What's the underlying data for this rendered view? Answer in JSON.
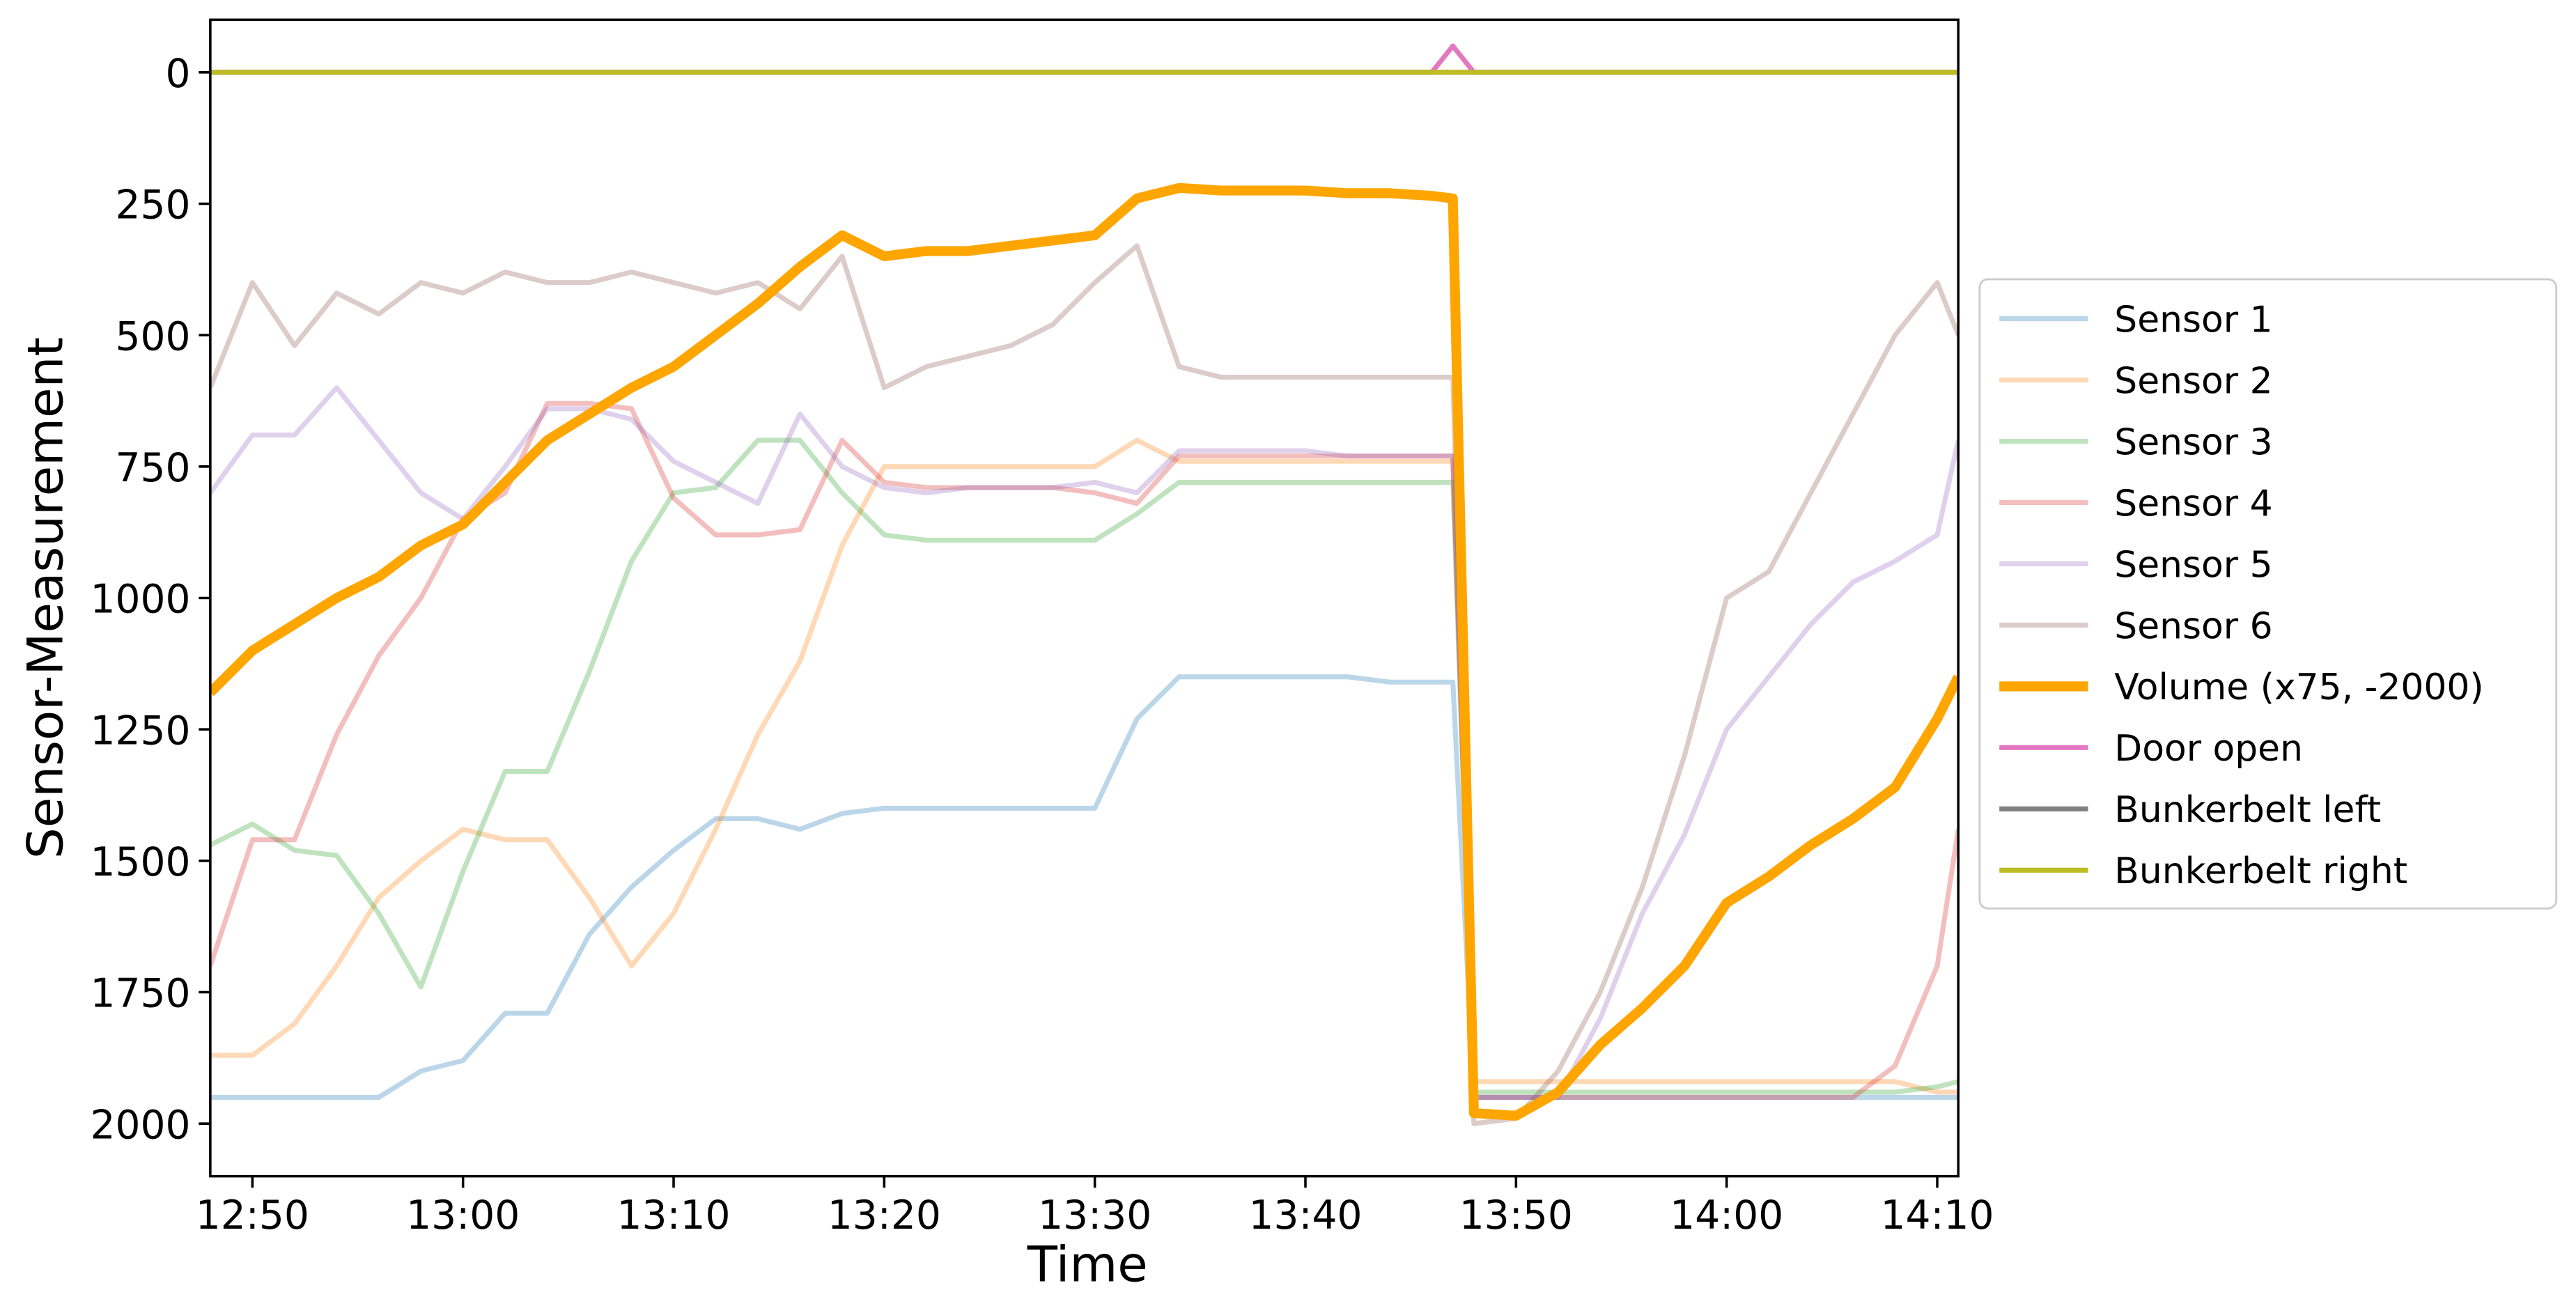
{
  "chart_data": {
    "type": "line",
    "x_label": "Time",
    "y_label": "Sensor-Measurement",
    "x": [
      "12:48",
      "12:50",
      "12:52",
      "12:54",
      "12:56",
      "12:58",
      "13:00",
      "13:02",
      "13:04",
      "13:06",
      "13:08",
      "13:10",
      "13:12",
      "13:14",
      "13:16",
      "13:18",
      "13:20",
      "13:22",
      "13:24",
      "13:26",
      "13:28",
      "13:30",
      "13:32",
      "13:34",
      "13:36",
      "13:38",
      "13:40",
      "13:42",
      "13:44",
      "13:46",
      "13:47",
      "13:48",
      "13:50",
      "13:52",
      "13:54",
      "13:56",
      "13:58",
      "14:00",
      "14:02",
      "14:04",
      "14:06",
      "14:08",
      "14:10",
      "14:11"
    ],
    "xlim": [
      "12:48",
      "14:11"
    ],
    "xticks": [
      "12:50",
      "13:00",
      "13:10",
      "13:20",
      "13:30",
      "13:40",
      "13:50",
      "14:00",
      "14:10"
    ],
    "ylim": [
      -100,
      2100
    ],
    "y_inverted": true,
    "yticks": [
      0,
      250,
      500,
      750,
      1000,
      1250,
      1500,
      1750,
      2000
    ],
    "grid": false,
    "legend": "outside right",
    "series": [
      {
        "name": "Sensor 1",
        "color": "#1f77b4",
        "alpha": 0.3,
        "line_width": 3,
        "values": [
          1950,
          1950,
          1950,
          1950,
          1950,
          1900,
          1880,
          1790,
          1790,
          1640,
          1550,
          1480,
          1420,
          1420,
          1440,
          1410,
          1400,
          1400,
          1400,
          1400,
          1400,
          1400,
          1230,
          1150,
          1150,
          1150,
          1150,
          1150,
          1160,
          1160,
          1160,
          1950,
          1950,
          1950,
          1950,
          1950,
          1950,
          1950,
          1950,
          1950,
          1950,
          1950,
          1950,
          1950
        ]
      },
      {
        "name": "Sensor 2",
        "color": "#ff7f0e",
        "alpha": 0.3,
        "line_width": 3,
        "values": [
          1870,
          1870,
          1810,
          1700,
          1570,
          1500,
          1440,
          1460,
          1460,
          1570,
          1700,
          1600,
          1440,
          1260,
          1120,
          900,
          750,
          750,
          750,
          750,
          750,
          750,
          700,
          740,
          740,
          740,
          740,
          740,
          740,
          740,
          740,
          1920,
          1920,
          1920,
          1920,
          1920,
          1920,
          1920,
          1920,
          1920,
          1920,
          1920,
          1940,
          1940
        ]
      },
      {
        "name": "Sensor 3",
        "color": "#2ca02c",
        "alpha": 0.3,
        "line_width": 3,
        "values": [
          1470,
          1430,
          1480,
          1490,
          1600,
          1740,
          1520,
          1330,
          1330,
          1140,
          930,
          800,
          790,
          700,
          700,
          800,
          880,
          890,
          890,
          890,
          890,
          890,
          840,
          780,
          780,
          780,
          780,
          780,
          780,
          780,
          780,
          1940,
          1940,
          1940,
          1940,
          1940,
          1940,
          1940,
          1940,
          1940,
          1940,
          1940,
          1930,
          1920
        ]
      },
      {
        "name": "Sensor 4",
        "color": "#d62728",
        "alpha": 0.3,
        "line_width": 3,
        "values": [
          1700,
          1460,
          1460,
          1260,
          1110,
          1000,
          850,
          800,
          630,
          630,
          640,
          810,
          880,
          880,
          870,
          700,
          780,
          790,
          790,
          790,
          790,
          800,
          820,
          730,
          730,
          730,
          730,
          730,
          730,
          730,
          730,
          1950,
          1950,
          1950,
          1950,
          1950,
          1950,
          1950,
          1950,
          1950,
          1950,
          1890,
          1700,
          1440
        ]
      },
      {
        "name": "Sensor 5",
        "color": "#9467bd",
        "alpha": 0.3,
        "line_width": 3,
        "values": [
          800,
          690,
          690,
          600,
          700,
          800,
          850,
          750,
          640,
          640,
          660,
          740,
          780,
          820,
          650,
          750,
          790,
          800,
          790,
          790,
          790,
          780,
          800,
          720,
          720,
          720,
          720,
          730,
          730,
          730,
          730,
          1950,
          1950,
          1950,
          1800,
          1600,
          1450,
          1250,
          1150,
          1050,
          970,
          930,
          880,
          700
        ]
      },
      {
        "name": "Sensor 6",
        "color": "#8c564b",
        "alpha": 0.3,
        "line_width": 3,
        "values": [
          600,
          400,
          520,
          420,
          460,
          400,
          420,
          380,
          400,
          400,
          380,
          400,
          420,
          400,
          450,
          350,
          600,
          560,
          540,
          520,
          480,
          400,
          330,
          560,
          580,
          580,
          580,
          580,
          580,
          580,
          580,
          2000,
          1990,
          1900,
          1750,
          1550,
          1300,
          1000,
          950,
          800,
          650,
          500,
          400,
          500
        ]
      },
      {
        "name": "Volume (x75, -2000)",
        "color": "#ffa500",
        "alpha": 1,
        "line_width": 6,
        "values": [
          1180,
          1100,
          1050,
          1000,
          960,
          900,
          860,
          780,
          700,
          650,
          600,
          560,
          500,
          440,
          370,
          310,
          350,
          340,
          340,
          330,
          320,
          310,
          240,
          220,
          225,
          225,
          225,
          230,
          230,
          235,
          240,
          1980,
          1985,
          1940,
          1850,
          1780,
          1700,
          1580,
          1530,
          1470,
          1420,
          1360,
          1230,
          1150
        ]
      },
      {
        "name": "Door open",
        "color": "#e377c2",
        "alpha": 1,
        "line_width": 3,
        "values": [
          0,
          0,
          0,
          0,
          0,
          0,
          0,
          0,
          0,
          0,
          0,
          0,
          0,
          0,
          0,
          0,
          0,
          0,
          0,
          0,
          0,
          0,
          0,
          0,
          0,
          0,
          0,
          0,
          0,
          0,
          -50,
          0,
          0,
          0,
          0,
          0,
          0,
          0,
          0,
          0,
          0,
          0,
          0,
          0
        ]
      },
      {
        "name": "Bunkerbelt left",
        "color": "#7f7f7f",
        "alpha": 1,
        "line_width": 3,
        "values": [
          0,
          0,
          0,
          0,
          0,
          0,
          0,
          0,
          0,
          0,
          0,
          0,
          0,
          0,
          0,
          0,
          0,
          0,
          0,
          0,
          0,
          0,
          0,
          0,
          0,
          0,
          0,
          0,
          0,
          0,
          0,
          0,
          0,
          0,
          0,
          0,
          0,
          0,
          0,
          0,
          0,
          0,
          0,
          0
        ]
      },
      {
        "name": "Bunkerbelt right",
        "color": "#bcbd22",
        "alpha": 1,
        "line_width": 3,
        "values": [
          0,
          0,
          0,
          0,
          0,
          0,
          0,
          0,
          0,
          0,
          0,
          0,
          0,
          0,
          0,
          0,
          0,
          0,
          0,
          0,
          0,
          0,
          0,
          0,
          0,
          0,
          0,
          0,
          0,
          0,
          0,
          0,
          0,
          0,
          0,
          0,
          0,
          0,
          0,
          0,
          0,
          0,
          0,
          0
        ]
      }
    ]
  }
}
